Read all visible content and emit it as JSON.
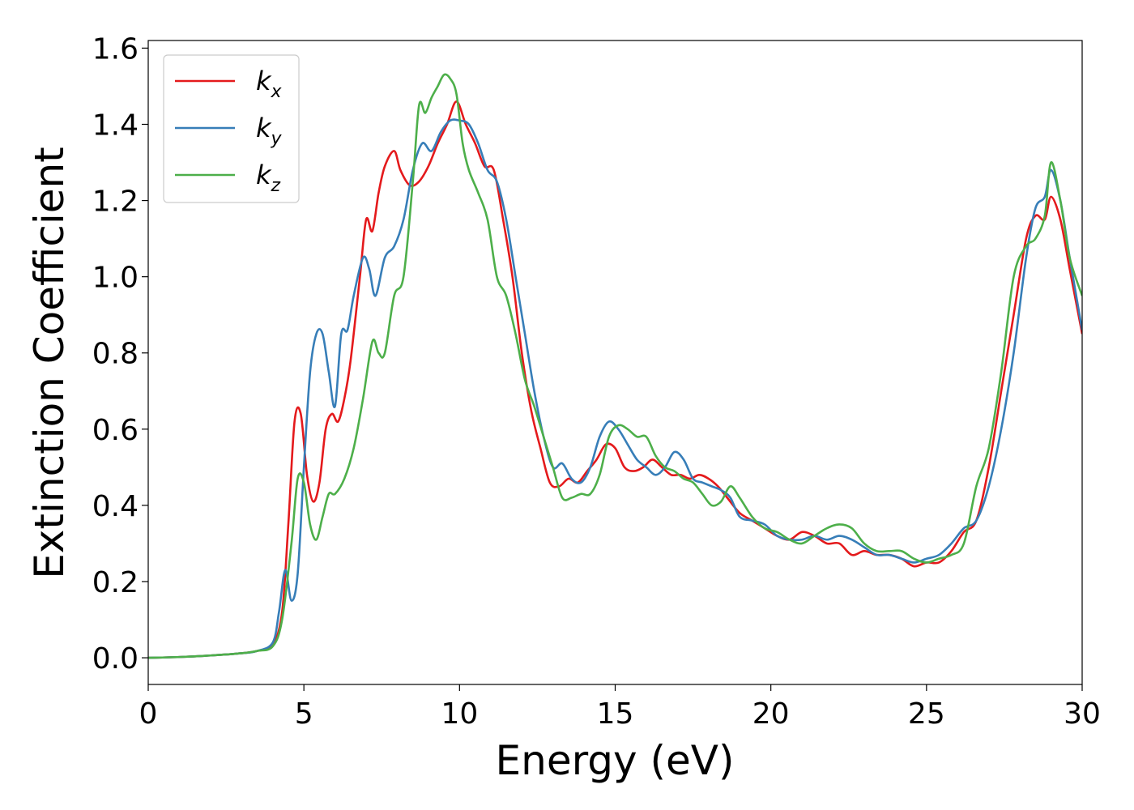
{
  "chart_data": {
    "type": "line",
    "xlabel": "Energy (eV)",
    "ylabel": "Extinction Coefficient",
    "xlim": [
      0,
      30
    ],
    "ylim": [
      -0.07,
      1.62
    ],
    "xticks": [
      0,
      5,
      10,
      15,
      20,
      25,
      30
    ],
    "xtick_labels": [
      "0",
      "5",
      "10",
      "15",
      "20",
      "25",
      "30"
    ],
    "yticks": [
      0.0,
      0.2,
      0.4,
      0.6,
      0.8,
      1.0,
      1.2,
      1.4,
      1.6
    ],
    "ytick_labels": [
      "0.0",
      "0.2",
      "0.4",
      "0.6",
      "0.8",
      "1.0",
      "1.2",
      "1.4",
      "1.6"
    ],
    "grid": false,
    "legend_position": "top-left",
    "series": [
      {
        "name": "kx",
        "legend_base": "k",
        "legend_sub": "x",
        "color": "#e41a1c",
        "x": [
          0,
          1,
          2,
          3,
          3.5,
          4,
          4.3,
          4.5,
          4.7,
          4.9,
          5.1,
          5.3,
          5.5,
          5.7,
          5.9,
          6.1,
          6.3,
          6.5,
          6.8,
          7.0,
          7.2,
          7.4,
          7.6,
          7.9,
          8.1,
          8.4,
          8.7,
          9.0,
          9.3,
          9.6,
          9.9,
          10.2,
          10.5,
          10.8,
          11.1,
          11.4,
          11.7,
          12.0,
          12.3,
          12.6,
          12.9,
          13.2,
          13.5,
          13.8,
          14.1,
          14.4,
          14.7,
          15.0,
          15.3,
          15.6,
          15.9,
          16.2,
          16.5,
          16.8,
          17.1,
          17.4,
          17.7,
          18.0,
          18.3,
          18.6,
          19.0,
          19.4,
          19.8,
          20.2,
          20.6,
          21.0,
          21.4,
          21.8,
          22.2,
          22.6,
          23.0,
          23.4,
          23.8,
          24.2,
          24.6,
          25.0,
          25.4,
          25.8,
          26.2,
          26.6,
          27.0,
          27.4,
          27.8,
          28.2,
          28.5,
          28.8,
          29.0,
          29.3,
          29.6,
          30.0
        ],
        "values": [
          0.0,
          0.002,
          0.006,
          0.012,
          0.018,
          0.035,
          0.12,
          0.35,
          0.62,
          0.64,
          0.48,
          0.41,
          0.46,
          0.6,
          0.64,
          0.62,
          0.68,
          0.78,
          1.0,
          1.15,
          1.12,
          1.22,
          1.29,
          1.33,
          1.28,
          1.24,
          1.25,
          1.29,
          1.35,
          1.4,
          1.46,
          1.4,
          1.35,
          1.29,
          1.28,
          1.15,
          1.0,
          0.8,
          0.65,
          0.55,
          0.46,
          0.45,
          0.47,
          0.46,
          0.49,
          0.52,
          0.56,
          0.55,
          0.5,
          0.49,
          0.5,
          0.52,
          0.5,
          0.48,
          0.48,
          0.47,
          0.48,
          0.47,
          0.45,
          0.42,
          0.38,
          0.36,
          0.34,
          0.32,
          0.31,
          0.33,
          0.32,
          0.3,
          0.3,
          0.27,
          0.28,
          0.27,
          0.27,
          0.26,
          0.24,
          0.25,
          0.25,
          0.28,
          0.33,
          0.36,
          0.5,
          0.7,
          0.9,
          1.1,
          1.16,
          1.15,
          1.21,
          1.15,
          1.02,
          0.85
        ]
      },
      {
        "name": "ky",
        "legend_base": "k",
        "legend_sub": "y",
        "color": "#377eb8",
        "x": [
          0,
          1,
          2,
          3,
          3.5,
          4,
          4.2,
          4.4,
          4.6,
          4.8,
          5.0,
          5.2,
          5.4,
          5.6,
          5.8,
          6.0,
          6.2,
          6.4,
          6.6,
          6.9,
          7.1,
          7.3,
          7.6,
          7.9,
          8.2,
          8.5,
          8.8,
          9.1,
          9.4,
          9.7,
          10.0,
          10.3,
          10.6,
          10.9,
          11.2,
          11.5,
          11.8,
          12.1,
          12.4,
          12.7,
          13.0,
          13.3,
          13.6,
          13.9,
          14.2,
          14.5,
          14.8,
          15.1,
          15.4,
          15.7,
          16.0,
          16.3,
          16.6,
          16.9,
          17.2,
          17.5,
          17.8,
          18.1,
          18.4,
          18.7,
          19.0,
          19.4,
          19.8,
          20.2,
          20.6,
          21.0,
          21.4,
          21.8,
          22.2,
          22.6,
          23.0,
          23.4,
          23.8,
          24.2,
          24.6,
          25.0,
          25.4,
          25.8,
          26.2,
          26.6,
          27.0,
          27.4,
          27.8,
          28.2,
          28.5,
          28.8,
          29.0,
          29.3,
          29.6,
          30.0
        ],
        "values": [
          0.0,
          0.002,
          0.006,
          0.012,
          0.018,
          0.04,
          0.12,
          0.23,
          0.15,
          0.22,
          0.5,
          0.75,
          0.85,
          0.85,
          0.75,
          0.66,
          0.85,
          0.86,
          0.95,
          1.05,
          1.02,
          0.95,
          1.05,
          1.08,
          1.15,
          1.28,
          1.35,
          1.33,
          1.38,
          1.41,
          1.41,
          1.4,
          1.35,
          1.28,
          1.25,
          1.15,
          1.0,
          0.85,
          0.7,
          0.58,
          0.5,
          0.51,
          0.47,
          0.46,
          0.5,
          0.58,
          0.62,
          0.6,
          0.56,
          0.52,
          0.5,
          0.48,
          0.5,
          0.54,
          0.52,
          0.47,
          0.46,
          0.45,
          0.44,
          0.42,
          0.37,
          0.36,
          0.35,
          0.32,
          0.31,
          0.31,
          0.32,
          0.31,
          0.32,
          0.31,
          0.29,
          0.27,
          0.27,
          0.26,
          0.25,
          0.26,
          0.27,
          0.3,
          0.34,
          0.36,
          0.45,
          0.6,
          0.8,
          1.05,
          1.18,
          1.21,
          1.28,
          1.2,
          1.05,
          0.86
        ]
      },
      {
        "name": "kz",
        "legend_base": "k",
        "legend_sub": "z",
        "color": "#4daf4a",
        "x": [
          0,
          1,
          2,
          3,
          3.5,
          4,
          4.3,
          4.6,
          4.8,
          5.0,
          5.2,
          5.4,
          5.6,
          5.8,
          6.0,
          6.3,
          6.6,
          6.9,
          7.2,
          7.4,
          7.6,
          7.9,
          8.2,
          8.5,
          8.7,
          8.9,
          9.1,
          9.3,
          9.5,
          9.7,
          9.9,
          10.1,
          10.3,
          10.6,
          10.9,
          11.2,
          11.5,
          11.8,
          12.1,
          12.4,
          12.7,
          13.0,
          13.3,
          13.6,
          13.9,
          14.2,
          14.5,
          14.8,
          15.1,
          15.4,
          15.7,
          16.0,
          16.3,
          16.6,
          16.9,
          17.2,
          17.5,
          17.8,
          18.1,
          18.4,
          18.7,
          19.0,
          19.4,
          19.8,
          20.2,
          20.6,
          21.0,
          21.4,
          21.8,
          22.2,
          22.6,
          23.0,
          23.4,
          23.8,
          24.2,
          24.6,
          25.0,
          25.4,
          25.8,
          26.2,
          26.6,
          27.0,
          27.4,
          27.8,
          28.2,
          28.5,
          28.8,
          29.0,
          29.3,
          29.6,
          30.0
        ],
        "values": [
          0.0,
          0.002,
          0.006,
          0.012,
          0.018,
          0.03,
          0.1,
          0.3,
          0.47,
          0.46,
          0.35,
          0.31,
          0.37,
          0.43,
          0.43,
          0.47,
          0.55,
          0.68,
          0.83,
          0.8,
          0.8,
          0.95,
          1.0,
          1.25,
          1.45,
          1.43,
          1.47,
          1.5,
          1.53,
          1.52,
          1.48,
          1.35,
          1.28,
          1.22,
          1.15,
          1.0,
          0.95,
          0.85,
          0.73,
          0.66,
          0.58,
          0.5,
          0.42,
          0.42,
          0.43,
          0.43,
          0.48,
          0.58,
          0.61,
          0.6,
          0.58,
          0.58,
          0.53,
          0.5,
          0.49,
          0.47,
          0.46,
          0.43,
          0.4,
          0.41,
          0.45,
          0.42,
          0.37,
          0.34,
          0.33,
          0.31,
          0.3,
          0.32,
          0.34,
          0.35,
          0.34,
          0.3,
          0.28,
          0.28,
          0.28,
          0.26,
          0.25,
          0.26,
          0.27,
          0.3,
          0.45,
          0.55,
          0.75,
          1.0,
          1.08,
          1.1,
          1.16,
          1.3,
          1.2,
          1.05,
          0.95
        ]
      }
    ]
  }
}
